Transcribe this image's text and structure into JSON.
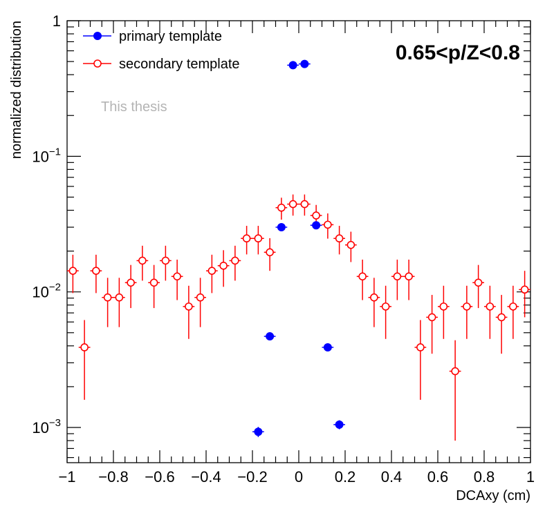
{
  "chart_data": {
    "type": "scatter",
    "xlabel": "DCAxy (cm)",
    "ylabel": "normalized distribution",
    "xlim": [
      -1,
      1
    ],
    "ylim": [
      0.00055,
      1
    ],
    "log_y": true,
    "grid": false,
    "legend_position": "top-left",
    "annotation": "0.65<p/Z<0.8",
    "watermark": "This thesis",
    "x_ticks": [
      {
        "value": -1,
        "label": "−1"
      },
      {
        "value": -0.8,
        "label": "−0.8"
      },
      {
        "value": -0.6,
        "label": "−0.6"
      },
      {
        "value": -0.4,
        "label": "−0.4"
      },
      {
        "value": -0.2,
        "label": "−0.2"
      },
      {
        "value": 0,
        "label": "0"
      },
      {
        "value": 0.2,
        "label": "0.2"
      },
      {
        "value": 0.4,
        "label": "0.4"
      },
      {
        "value": 0.6,
        "label": "0.6"
      },
      {
        "value": 0.8,
        "label": "0.8"
      },
      {
        "value": 1,
        "label": "1"
      }
    ],
    "y_ticks": [
      {
        "value": 1,
        "base": "1",
        "exp": ""
      },
      {
        "value": 0.1,
        "base": "10",
        "exp": "−1"
      },
      {
        "value": 0.01,
        "base": "10",
        "exp": "−2"
      },
      {
        "value": 0.001,
        "base": "10",
        "exp": "−3"
      }
    ],
    "series": [
      {
        "name": "primary template",
        "color": "#0000ff",
        "marker": "filled-circle",
        "bin_half_width": 0.025,
        "points": [
          {
            "x": -0.175,
            "y": 0.00093,
            "err": 8e-05
          },
          {
            "x": -0.125,
            "y": 0.0047,
            "err": 0.0002
          },
          {
            "x": -0.075,
            "y": 0.03,
            "err": 0.0012
          },
          {
            "x": -0.025,
            "y": 0.47,
            "err": 0.01
          },
          {
            "x": 0.025,
            "y": 0.48,
            "err": 0.01
          },
          {
            "x": 0.075,
            "y": 0.031,
            "err": 0.0012
          },
          {
            "x": 0.125,
            "y": 0.0039,
            "err": 0.0002
          },
          {
            "x": 0.175,
            "y": 0.00105,
            "err": 8e-05
          }
        ]
      },
      {
        "name": "secondary template",
        "color": "#ff0000",
        "marker": "open-circle",
        "bin_half_width": 0.025,
        "points": [
          {
            "x": -0.975,
            "y": 0.0143,
            "err": 0.0045
          },
          {
            "x": -0.925,
            "y": 0.0039,
            "err": 0.0023
          },
          {
            "x": -0.875,
            "y": 0.0143,
            "err": 0.0045
          },
          {
            "x": -0.825,
            "y": 0.0091,
            "err": 0.0036
          },
          {
            "x": -0.775,
            "y": 0.0091,
            "err": 0.0036
          },
          {
            "x": -0.725,
            "y": 0.0117,
            "err": 0.0041
          },
          {
            "x": -0.675,
            "y": 0.017,
            "err": 0.0049
          },
          {
            "x": -0.625,
            "y": 0.0117,
            "err": 0.0041
          },
          {
            "x": -0.575,
            "y": 0.017,
            "err": 0.0049
          },
          {
            "x": -0.525,
            "y": 0.013,
            "err": 0.0043
          },
          {
            "x": -0.475,
            "y": 0.0078,
            "err": 0.0033
          },
          {
            "x": -0.425,
            "y": 0.0091,
            "err": 0.0036
          },
          {
            "x": -0.375,
            "y": 0.0143,
            "err": 0.0045
          },
          {
            "x": -0.325,
            "y": 0.0156,
            "err": 0.0047
          },
          {
            "x": -0.275,
            "y": 0.017,
            "err": 0.0049
          },
          {
            "x": -0.225,
            "y": 0.0248,
            "err": 0.0059
          },
          {
            "x": -0.175,
            "y": 0.0248,
            "err": 0.0059
          },
          {
            "x": -0.125,
            "y": 0.0196,
            "err": 0.0053
          },
          {
            "x": -0.075,
            "y": 0.0418,
            "err": 0.0077
          },
          {
            "x": -0.025,
            "y": 0.0444,
            "err": 0.0079
          },
          {
            "x": 0.025,
            "y": 0.0444,
            "err": 0.0079
          },
          {
            "x": 0.075,
            "y": 0.0366,
            "err": 0.0072
          },
          {
            "x": 0.125,
            "y": 0.0313,
            "err": 0.0066
          },
          {
            "x": 0.175,
            "y": 0.0248,
            "err": 0.0059
          },
          {
            "x": 0.225,
            "y": 0.0222,
            "err": 0.0056
          },
          {
            "x": 0.275,
            "y": 0.013,
            "err": 0.0043
          },
          {
            "x": 0.325,
            "y": 0.0091,
            "err": 0.0036
          },
          {
            "x": 0.375,
            "y": 0.0078,
            "err": 0.0033
          },
          {
            "x": 0.425,
            "y": 0.013,
            "err": 0.0043
          },
          {
            "x": 0.475,
            "y": 0.013,
            "err": 0.0043
          },
          {
            "x": 0.525,
            "y": 0.0039,
            "err": 0.0023
          },
          {
            "x": 0.575,
            "y": 0.0065,
            "err": 0.003
          },
          {
            "x": 0.625,
            "y": 0.0078,
            "err": 0.0033
          },
          {
            "x": 0.675,
            "y": 0.0026,
            "err": 0.0018
          },
          {
            "x": 0.725,
            "y": 0.0078,
            "err": 0.0033
          },
          {
            "x": 0.775,
            "y": 0.0117,
            "err": 0.0041
          },
          {
            "x": 0.825,
            "y": 0.0078,
            "err": 0.0033
          },
          {
            "x": 0.875,
            "y": 0.0065,
            "err": 0.003
          },
          {
            "x": 0.925,
            "y": 0.0078,
            "err": 0.0033
          },
          {
            "x": 0.975,
            "y": 0.0104,
            "err": 0.0039
          }
        ]
      }
    ]
  }
}
